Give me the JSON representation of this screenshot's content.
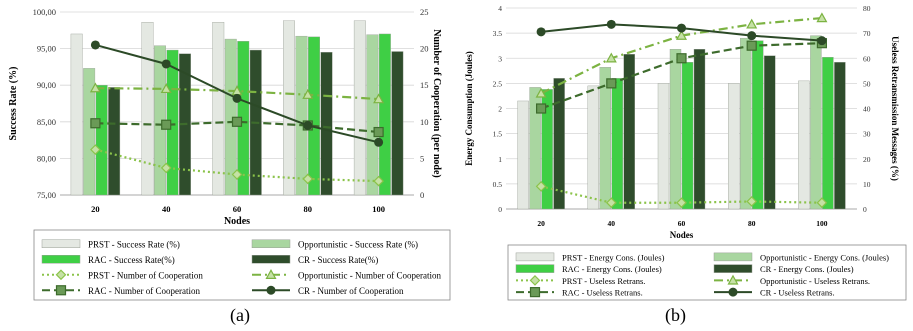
{
  "panels": [
    {
      "caption": "(a)",
      "chart_data": {
        "type": "bar",
        "x": [
          20,
          40,
          60,
          80,
          100
        ],
        "xlabel": "Nodes",
        "ylabel": "Success Rate (%)",
        "y2label": "Number of Cooperation (per node)",
        "ylim": [
          75,
          100
        ],
        "yticks": [
          "75,00",
          "80,00",
          "85,00",
          "90,00",
          "95,00",
          "100,00"
        ],
        "y2lim": [
          0,
          25
        ],
        "y2ticks": [
          "0",
          "5",
          "10",
          "15",
          "20",
          "25"
        ],
        "bar_series": [
          {
            "name": "PRST - Success Rate (%)",
            "values": [
              97.0,
              98.6,
              98.6,
              98.8,
              98.8
            ],
            "color": "#e4e8e2"
          },
          {
            "name": "Opportunistic - Success Rate (%)",
            "values": [
              92.3,
              95.4,
              96.3,
              96.7,
              96.9
            ],
            "color": "#a9d6a0"
          },
          {
            "name": "RAC - Success Rate(%)",
            "values": [
              90.0,
              94.8,
              96.0,
              96.6,
              97.0
            ],
            "color": "#3fcf45"
          },
          {
            "name": "CR - Success Rate(%)",
            "values": [
              89.7,
              94.3,
              94.8,
              94.5,
              94.6
            ],
            "color": "#2f4d2c"
          }
        ],
        "line_series": [
          {
            "name": "PRST - Number of Cooperation",
            "values": [
              6.2,
              3.7,
              2.8,
              2.2,
              1.9
            ],
            "color": "#8bc34a",
            "marker": "diamond",
            "dash": "2,3"
          },
          {
            "name": "Opportunistic - Number of Cooperation",
            "values": [
              14.6,
              14.5,
              14.2,
              13.7,
              13.1
            ],
            "color": "#7cb342",
            "marker": "triangle",
            "dash": "9,4,2,4"
          },
          {
            "name": "RAC - Number of Cooperation",
            "values": [
              9.8,
              9.6,
              10.0,
              9.5,
              8.6
            ],
            "color": "#3d6b2c",
            "marker": "square",
            "dash": "8,4"
          },
          {
            "name": "CR - Number of Cooperation",
            "values": [
              20.5,
              17.9,
              13.2,
              9.5,
              7.2
            ],
            "color": "#2c4a27",
            "marker": "circle",
            "dash": ""
          }
        ]
      }
    },
    {
      "caption": "(b)",
      "chart_data": {
        "type": "bar",
        "x": [
          20,
          40,
          60,
          80,
          100
        ],
        "xlabel": "Nodes",
        "ylabel": "Energy Consumption (Joules)",
        "y2label": "Useless Retransmission Messages (%)",
        "ylim": [
          0,
          4
        ],
        "yticks": [
          "0",
          "0.5",
          "1",
          "1.5",
          "2",
          "2.5",
          "3",
          "3.5",
          "4"
        ],
        "y2lim": [
          0,
          80
        ],
        "y2ticks": [
          "0",
          "10",
          "20",
          "30",
          "40",
          "50",
          "60",
          "70",
          "80"
        ],
        "bar_series": [
          {
            "name": "PRST - Energy Cons. (Joules)",
            "values": [
              2.15,
              2.45,
              2.5,
              2.5,
              2.55
            ],
            "color": "#e4e8e2"
          },
          {
            "name": "Opportunistic - Energy Cons. (Joules)",
            "values": [
              2.42,
              2.82,
              3.18,
              3.4,
              3.45
            ],
            "color": "#a9d6a0"
          },
          {
            "name": "RAC - Energy Cons. (Joules)",
            "values": [
              2.38,
              2.6,
              2.92,
              3.35,
              3.02
            ],
            "color": "#3fcf45"
          },
          {
            "name": "CR - Energy Cons. (Joules)",
            "values": [
              2.6,
              3.08,
              3.18,
              3.05,
              2.92
            ],
            "color": "#2f4d2c"
          }
        ],
        "line_series": [
          {
            "name": "PRST - Useless Retrans.",
            "values": [
              9,
              2.5,
              2.5,
              3,
              2.5
            ],
            "color": "#8bc34a",
            "marker": "diamond",
            "dash": "2,3"
          },
          {
            "name": "Opportunistic - Useless Retrans.",
            "values": [
              46,
              60,
              69,
              73.5,
              76
            ],
            "color": "#7cb342",
            "marker": "triangle",
            "dash": "9,4,2,4"
          },
          {
            "name": "RAC - Useless Retrans.",
            "values": [
              40,
              50,
              60,
              65,
              66
            ],
            "color": "#3d6b2c",
            "marker": "square",
            "dash": "8,4"
          },
          {
            "name": "CR - Useless Retrans.",
            "values": [
              70.5,
              73.5,
              72,
              69,
              67
            ],
            "color": "#2c4a27",
            "marker": "circle",
            "dash": ""
          }
        ]
      }
    }
  ]
}
